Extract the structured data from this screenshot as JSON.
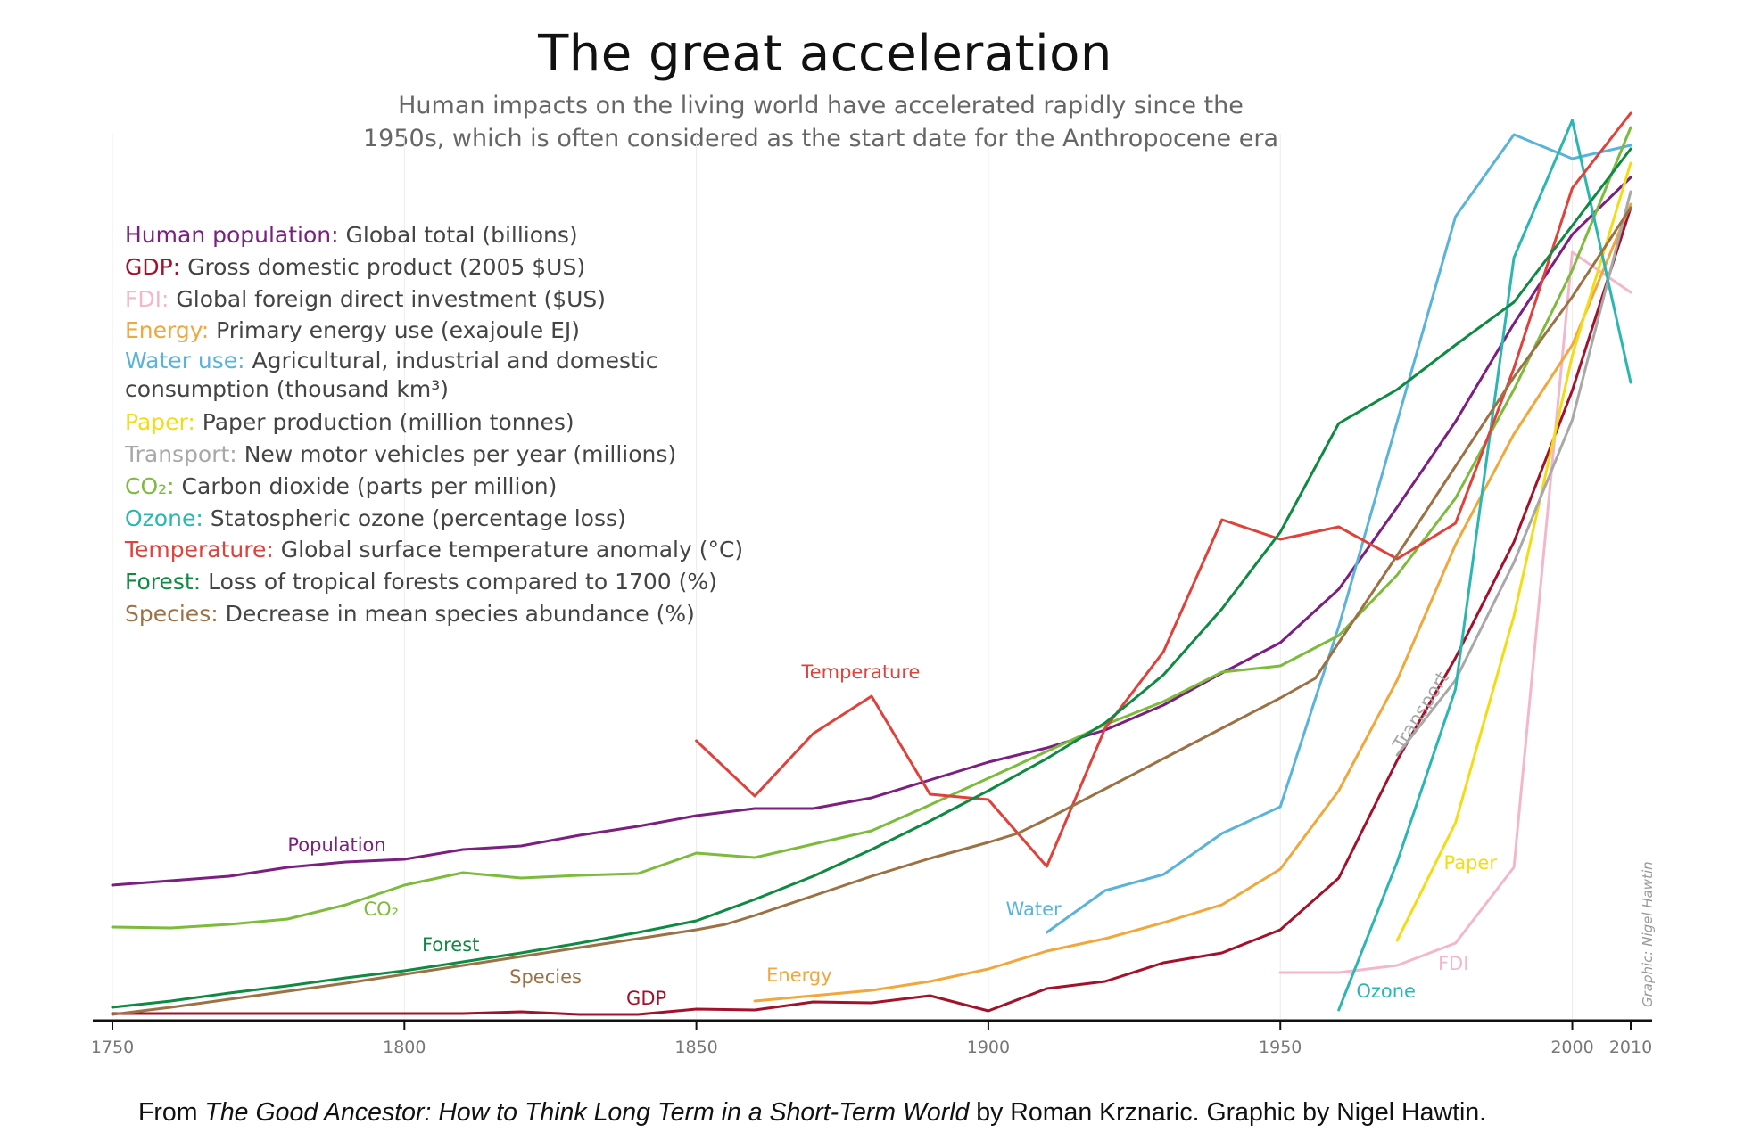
{
  "title": "The great acceleration",
  "subtitle_lines": [
    "Human impacts on the living world have accelerated rapidly since the",
    "1950s, which is often considered as the start date for the Anthropocene era"
  ],
  "legend": [
    {
      "name": "Human population:",
      "desc": "Global total (billions)",
      "color": "#7b1f80"
    },
    {
      "name": "GDP:",
      "desc": "Gross domestic product (2005 $US)",
      "color": "#a3122b"
    },
    {
      "name": "FDI:",
      "desc": "Global foreign direct investment ($US)",
      "color": "#f3b7cc"
    },
    {
      "name": "Energy:",
      "desc": "Primary energy use (exajoule EJ)",
      "color": "#f0a83c"
    },
    {
      "name": "Water use:",
      "desc": "Agricultural, industrial and domestic consumption (thousand km³)",
      "color": "#5ab4da"
    },
    {
      "name": "Paper:",
      "desc": "Paper production (million tonnes)",
      "color": "#f2dd14"
    },
    {
      "name": "Transport:",
      "desc": "New motor vehicles per year (millions)",
      "color": "#a8a8a8"
    },
    {
      "name": "CO₂:",
      "desc": "Carbon dioxide (parts per million)",
      "color": "#7dbb3c"
    },
    {
      "name": "Ozone:",
      "desc": "Statospheric ozone (percentage loss)",
      "color": "#2bb7b0"
    },
    {
      "name": "Temperature:",
      "desc": "Global surface temperature anomaly (°C)",
      "color": "#e0413a"
    },
    {
      "name": "Forest:",
      "desc": "Loss of tropical forests compared to 1700 (%)",
      "color": "#0f8a43"
    },
    {
      "name": "Species:",
      "desc": "Decrease in mean species abundance (%)",
      "color": "#9c7245"
    }
  ],
  "credit": {
    "prefix": "From ",
    "book": "The Good Ancestor: How to Think Long Term in a Short-Term World",
    "suffix": " by Roman Krznaric. Graphic by Nigel Hawtin."
  },
  "graphic_credit": "Graphic: Nigel Hawtin",
  "chart_data": {
    "type": "line",
    "title": "The great acceleration",
    "x_unit": "year",
    "xlim": [
      1750,
      2010
    ],
    "x_ticks": [
      1750,
      1800,
      1850,
      1900,
      1950,
      2000,
      2010
    ],
    "y_axis": "relative scale (unlabeled)",
    "ylim": [
      0,
      100
    ],
    "grid": {
      "vertical": [
        1750,
        1800,
        1850,
        1900,
        1950,
        2000
      ],
      "horizontal": false
    },
    "series": [
      {
        "key": "population",
        "name": "Human population",
        "label": "Population",
        "color": "#7b1f80",
        "points": [
          [
            1750,
            15
          ],
          [
            1760,
            15.5
          ],
          [
            1770,
            16
          ],
          [
            1780,
            17
          ],
          [
            1790,
            17.6
          ],
          [
            1800,
            17.9
          ],
          [
            1810,
            19
          ],
          [
            1820,
            19.4
          ],
          [
            1830,
            20.6
          ],
          [
            1840,
            21.6
          ],
          [
            1850,
            22.8
          ],
          [
            1860,
            23.6
          ],
          [
            1870,
            23.6
          ],
          [
            1880,
            24.8
          ],
          [
            1890,
            26.8
          ],
          [
            1900,
            28.8
          ],
          [
            1910,
            30.4
          ],
          [
            1920,
            32.4
          ],
          [
            1930,
            35.2
          ],
          [
            1940,
            38.8
          ],
          [
            1950,
            42.2
          ],
          [
            1960,
            48.2
          ],
          [
            1970,
            57.4
          ],
          [
            1980,
            67
          ],
          [
            1990,
            78
          ],
          [
            2000,
            88
          ],
          [
            2010,
            94.4
          ]
        ]
      },
      {
        "key": "gdp",
        "name": "GDP",
        "label": "GDP",
        "color": "#a3122b",
        "points": [
          [
            1750,
            0.6
          ],
          [
            1800,
            0.6
          ],
          [
            1810,
            0.6
          ],
          [
            1820,
            0.8
          ],
          [
            1830,
            0.5
          ],
          [
            1840,
            0.5
          ],
          [
            1850,
            1.1
          ],
          [
            1860,
            1
          ],
          [
            1870,
            1.9
          ],
          [
            1880,
            1.8
          ],
          [
            1890,
            2.6
          ],
          [
            1900,
            0.9
          ],
          [
            1910,
            3.4
          ],
          [
            1920,
            4.2
          ],
          [
            1930,
            6.3
          ],
          [
            1940,
            7.4
          ],
          [
            1950,
            10
          ],
          [
            1960,
            15.8
          ],
          [
            1970,
            29
          ],
          [
            1980,
            40.5
          ],
          [
            1990,
            53.5
          ],
          [
            2000,
            70.5
          ],
          [
            2010,
            91
          ]
        ]
      },
      {
        "key": "fdi",
        "name": "FDI",
        "label": "FDI",
        "color": "#f3b7cc",
        "points": [
          [
            1950,
            5.2
          ],
          [
            1960,
            5.2
          ],
          [
            1970,
            6
          ],
          [
            1980,
            8.5
          ],
          [
            1990,
            17
          ],
          [
            2000,
            86
          ],
          [
            2010,
            81.5
          ]
        ]
      },
      {
        "key": "energy",
        "name": "Energy",
        "label": "Energy",
        "color": "#f0a83c",
        "points": [
          [
            1860,
            2
          ],
          [
            1870,
            2.6
          ],
          [
            1880,
            3.2
          ],
          [
            1890,
            4.2
          ],
          [
            1900,
            5.6
          ],
          [
            1910,
            7.6
          ],
          [
            1920,
            9
          ],
          [
            1930,
            10.8
          ],
          [
            1940,
            12.8
          ],
          [
            1950,
            16.8
          ],
          [
            1960,
            25.6
          ],
          [
            1970,
            38
          ],
          [
            1980,
            53.2
          ],
          [
            1990,
            65.6
          ],
          [
            2000,
            75.6
          ],
          [
            2010,
            91.4
          ]
        ]
      },
      {
        "key": "water",
        "name": "Water use",
        "label": "Water",
        "color": "#5ab4da",
        "points": [
          [
            1910,
            9.7
          ],
          [
            1920,
            14.4
          ],
          [
            1930,
            16.2
          ],
          [
            1940,
            20.8
          ],
          [
            1950,
            23.8
          ],
          [
            1960,
            44
          ],
          [
            1970,
            67
          ],
          [
            1980,
            90
          ],
          [
            1990,
            99.2
          ],
          [
            2000,
            96.5
          ],
          [
            2010,
            98
          ]
        ]
      },
      {
        "key": "paper",
        "name": "Paper",
        "label": "Paper",
        "color": "#f2dd14",
        "points": [
          [
            1970,
            8.8
          ],
          [
            1980,
            22
          ],
          [
            1990,
            45.2
          ],
          [
            2000,
            74.4
          ],
          [
            2010,
            96
          ]
        ]
      },
      {
        "key": "transport",
        "name": "Transport",
        "label": "Transport",
        "color": "#a8a8a8",
        "points": [
          [
            1970,
            29.6
          ],
          [
            1980,
            38
          ],
          [
            1990,
            51.2
          ],
          [
            2000,
            67.2
          ],
          [
            2010,
            92.8
          ]
        ]
      },
      {
        "key": "co2",
        "name": "CO₂",
        "label": "CO₂",
        "color": "#7dbb3c",
        "points": [
          [
            1750,
            10.3
          ],
          [
            1760,
            10.2
          ],
          [
            1770,
            10.6
          ],
          [
            1780,
            11.2
          ],
          [
            1790,
            12.8
          ],
          [
            1800,
            15
          ],
          [
            1810,
            16.4
          ],
          [
            1820,
            15.8
          ],
          [
            1830,
            16.1
          ],
          [
            1840,
            16.3
          ],
          [
            1850,
            18.6
          ],
          [
            1860,
            18.1
          ],
          [
            1870,
            19.6
          ],
          [
            1880,
            21.1
          ],
          [
            1890,
            24
          ],
          [
            1900,
            27
          ],
          [
            1910,
            30
          ],
          [
            1920,
            33
          ],
          [
            1930,
            35.6
          ],
          [
            1940,
            38.9
          ],
          [
            1950,
            39.6
          ],
          [
            1960,
            43
          ],
          [
            1970,
            49.8
          ],
          [
            1980,
            58.4
          ],
          [
            1990,
            70.6
          ],
          [
            2000,
            84
          ],
          [
            2010,
            100
          ]
        ]
      },
      {
        "key": "ozone",
        "name": "Ozone",
        "label": "Ozone",
        "color": "#2bb7b0",
        "points": [
          [
            1960,
            1
          ],
          [
            1970,
            17.6
          ],
          [
            1980,
            37
          ],
          [
            1990,
            85.4
          ],
          [
            2000,
            100.8
          ],
          [
            2010,
            71.4
          ]
        ]
      },
      {
        "key": "temperature",
        "name": "Temperature",
        "label": "Temperature",
        "color": "#e0413a",
        "points": [
          [
            1850,
            31.2
          ],
          [
            1860,
            25
          ],
          [
            1870,
            32
          ],
          [
            1880,
            36.2
          ],
          [
            1890,
            25.2
          ],
          [
            1900,
            24.6
          ],
          [
            1910,
            17.1
          ],
          [
            1920,
            32.6
          ],
          [
            1930,
            41.2
          ],
          [
            1940,
            56
          ],
          [
            1950,
            53.8
          ],
          [
            1960,
            55.2
          ],
          [
            1970,
            51.6
          ],
          [
            1980,
            55.6
          ],
          [
            1990,
            73
          ],
          [
            2000,
            93.2
          ],
          [
            2010,
            101.6
          ]
        ]
      },
      {
        "key": "forest",
        "name": "Forest",
        "label": "Forest",
        "color": "#0f8a43",
        "points": [
          [
            1750,
            1.3
          ],
          [
            1760,
            2
          ],
          [
            1770,
            2.9
          ],
          [
            1780,
            3.7
          ],
          [
            1790,
            4.6
          ],
          [
            1800,
            5.4
          ],
          [
            1810,
            6.4
          ],
          [
            1820,
            7.4
          ],
          [
            1830,
            8.5
          ],
          [
            1840,
            9.7
          ],
          [
            1850,
            11
          ],
          [
            1860,
            13.4
          ],
          [
            1870,
            16
          ],
          [
            1880,
            19
          ],
          [
            1890,
            22.2
          ],
          [
            1900,
            25.6
          ],
          [
            1910,
            29.2
          ],
          [
            1920,
            33.2
          ],
          [
            1930,
            38.6
          ],
          [
            1940,
            46
          ],
          [
            1950,
            54.6
          ],
          [
            1960,
            66.8
          ],
          [
            1970,
            70.6
          ],
          [
            1980,
            75.6
          ],
          [
            1990,
            80.4
          ],
          [
            2000,
            89
          ],
          [
            2010,
            97.6
          ]
        ]
      },
      {
        "key": "species",
        "name": "Species",
        "label": "Species",
        "color": "#9c7245",
        "points": [
          [
            1750,
            0.5
          ],
          [
            1760,
            1.3
          ],
          [
            1770,
            2.2
          ],
          [
            1780,
            3.1
          ],
          [
            1790,
            4
          ],
          [
            1800,
            5
          ],
          [
            1810,
            6
          ],
          [
            1820,
            7
          ],
          [
            1830,
            8
          ],
          [
            1840,
            9
          ],
          [
            1850,
            10
          ],
          [
            1855,
            10.6
          ],
          [
            1860,
            11.6
          ],
          [
            1870,
            13.8
          ],
          [
            1880,
            16
          ],
          [
            1890,
            18
          ],
          [
            1900,
            19.8
          ],
          [
            1905,
            20.8
          ],
          [
            1910,
            22.4
          ],
          [
            1920,
            25.8
          ],
          [
            1930,
            29.2
          ],
          [
            1940,
            32.6
          ],
          [
            1950,
            36
          ],
          [
            1956,
            38.2
          ],
          [
            1960,
            42.2
          ],
          [
            1970,
            52
          ],
          [
            1980,
            62
          ],
          [
            1990,
            72
          ],
          [
            2000,
            81
          ],
          [
            2010,
            91
          ]
        ]
      }
    ],
    "annotations": [
      {
        "text": "Population",
        "series": "population",
        "x": 1780,
        "y": 18.8
      },
      {
        "text": "CO₂",
        "series": "co2",
        "x": 1793,
        "y": 11.6
      },
      {
        "text": "Forest",
        "series": "forest",
        "x": 1803,
        "y": 7.6
      },
      {
        "text": "Species",
        "series": "species",
        "x": 1818,
        "y": 4
      },
      {
        "text": "GDP",
        "series": "gdp",
        "x": 1838,
        "y": 1.6
      },
      {
        "text": "Energy",
        "series": "energy",
        "x": 1862,
        "y": 4.2
      },
      {
        "text": "Temperature",
        "series": "temperature",
        "x": 1868,
        "y": 38.2
      },
      {
        "text": "Water",
        "series": "water",
        "x": 1903,
        "y": 11.6
      },
      {
        "text": "Ozone",
        "series": "ozone",
        "x": 1963,
        "y": 2.4
      },
      {
        "text": "FDI",
        "series": "fdi",
        "x": 1977,
        "y": 5.5
      },
      {
        "text": "Paper",
        "series": "paper",
        "x": 1978,
        "y": 16.8
      },
      {
        "text": "Transport",
        "series": "transport",
        "x": 1971,
        "y": 30,
        "rotate": -58
      }
    ]
  }
}
